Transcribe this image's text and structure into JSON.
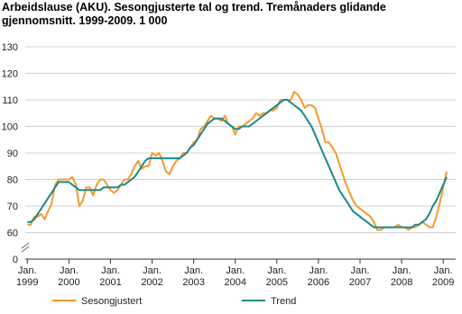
{
  "chart_data": {
    "type": "line",
    "title": "Arbeidslause (AKU). Sesongjusterte tal og trend. Tremånaders glidande gjennomsnitt. 1999-2009. 1 000",
    "x": [
      1999,
      1999.083,
      1999.167,
      1999.25,
      1999.333,
      1999.417,
      1999.5,
      1999.583,
      1999.667,
      1999.75,
      1999.833,
      1999.917,
      2000,
      2000.083,
      2000.167,
      2000.25,
      2000.333,
      2000.417,
      2000.5,
      2000.583,
      2000.667,
      2000.75,
      2000.833,
      2000.917,
      2001,
      2001.083,
      2001.167,
      2001.25,
      2001.333,
      2001.417,
      2001.5,
      2001.583,
      2001.667,
      2001.75,
      2001.833,
      2001.917,
      2002,
      2002.083,
      2002.167,
      2002.25,
      2002.333,
      2002.417,
      2002.5,
      2002.583,
      2002.667,
      2002.75,
      2002.833,
      2002.917,
      2003,
      2003.083,
      2003.167,
      2003.25,
      2003.333,
      2003.417,
      2003.5,
      2003.583,
      2003.667,
      2003.75,
      2003.833,
      2003.917,
      2004,
      2004.083,
      2004.167,
      2004.25,
      2004.333,
      2004.417,
      2004.5,
      2004.583,
      2004.667,
      2004.75,
      2004.833,
      2004.917,
      2005,
      2005.083,
      2005.167,
      2005.25,
      2005.333,
      2005.417,
      2005.5,
      2005.583,
      2005.667,
      2005.75,
      2005.833,
      2005.917,
      2006,
      2006.083,
      2006.167,
      2006.25,
      2006.333,
      2006.417,
      2006.5,
      2006.583,
      2006.667,
      2006.75,
      2006.833,
      2006.917,
      2007,
      2007.083,
      2007.167,
      2007.25,
      2007.333,
      2007.417,
      2007.5,
      2007.583,
      2007.667,
      2007.75,
      2007.833,
      2007.917,
      2008,
      2008.083,
      2008.167,
      2008.25,
      2008.333,
      2008.417,
      2008.5,
      2008.583,
      2008.667,
      2008.75,
      2008.833,
      2008.917,
      2009,
      2009.083
    ],
    "series": [
      {
        "name": "Sesongjustert",
        "color": "#f39a2f",
        "values": [
          63,
          63,
          66,
          66,
          67,
          65,
          68,
          71,
          78,
          80,
          80,
          80,
          80,
          81,
          78,
          70,
          72,
          77,
          77,
          74,
          78,
          80,
          80,
          78,
          76,
          75,
          76,
          78,
          80,
          80,
          82,
          85,
          87,
          84,
          85,
          85,
          90,
          89,
          90,
          87,
          83,
          82,
          85,
          87,
          88,
          90,
          90,
          92,
          94,
          95,
          99,
          100,
          102,
          104,
          103,
          103,
          102,
          104,
          101,
          100,
          97,
          100,
          100,
          101,
          102,
          103,
          105,
          104,
          105,
          105,
          106,
          106,
          107,
          110,
          110,
          110,
          110,
          113,
          112,
          110,
          107,
          108,
          108,
          107,
          103,
          99,
          94,
          94,
          92,
          90,
          86,
          82,
          78,
          75,
          72,
          70,
          69,
          68,
          67,
          66,
          64,
          61,
          61,
          62,
          62,
          62,
          62,
          63,
          62,
          62,
          61,
          62,
          62,
          63,
          64,
          63,
          62,
          62,
          66,
          71,
          77,
          83
        ]
      },
      {
        "name": "Trend",
        "color": "#1a8a8a",
        "values": [
          64,
          64,
          65,
          67,
          69,
          71,
          73,
          75,
          77,
          79,
          79,
          79,
          79,
          78,
          77,
          76,
          76,
          76,
          76,
          76,
          76,
          76,
          77,
          77,
          77,
          77,
          77,
          78,
          78,
          79,
          80,
          81,
          83,
          85,
          87,
          88,
          88,
          88,
          88,
          88,
          88,
          88,
          88,
          88,
          88,
          89,
          90,
          92,
          93,
          95,
          97,
          99,
          101,
          102,
          103,
          103,
          103,
          102,
          101,
          100,
          99,
          99,
          100,
          100,
          100,
          101,
          102,
          103,
          104,
          105,
          106,
          107,
          108,
          109,
          110,
          110,
          109,
          108,
          107,
          106,
          104,
          102,
          100,
          97,
          94,
          91,
          88,
          85,
          82,
          79,
          76,
          74,
          72,
          70,
          68,
          67,
          66,
          65,
          64,
          63,
          62,
          62,
          62,
          62,
          62,
          62,
          62,
          62,
          62,
          62,
          62,
          62,
          63,
          63,
          64,
          65,
          67,
          70,
          72,
          75,
          78,
          81
        ]
      }
    ],
    "xlim": [
      1998.95,
      2009.3
    ],
    "xticks": [
      {
        "value": 1999,
        "label": "Jan.\n1999"
      },
      {
        "value": 2000,
        "label": "Jan.\n2000"
      },
      {
        "value": 2001,
        "label": "Jan.\n2001"
      },
      {
        "value": 2002,
        "label": "Jan.\n2002"
      },
      {
        "value": 2003,
        "label": "Jan.\n2003"
      },
      {
        "value": 2004,
        "label": "Jan.\n2004"
      },
      {
        "value": 2005,
        "label": "Jan.\n2005"
      },
      {
        "value": 2006,
        "label": "Jan.\n2006"
      },
      {
        "value": 2007,
        "label": "Jan.\n2007"
      },
      {
        "value": 2008,
        "label": "Jan.\n2008"
      },
      {
        "value": 2009,
        "label": "Jan.\n2009"
      }
    ],
    "ylim": [
      0,
      130
    ],
    "yticks": [
      0,
      60,
      70,
      80,
      90,
      100,
      110,
      120,
      130
    ],
    "axis_break": true,
    "grid": true,
    "legend": "bottom"
  }
}
